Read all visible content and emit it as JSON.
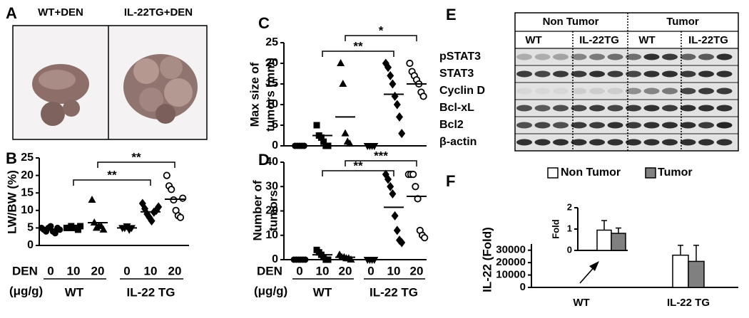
{
  "photo": {
    "panel": "A",
    "labels": [
      "WT+DEN",
      "IL-22TG+DEN"
    ]
  },
  "blot": {
    "panel": "E",
    "groups": [
      "Non Tumor",
      "Tumor"
    ],
    "genotypes": [
      "WT",
      "IL-22TG",
      "WT",
      "IL-22TG"
    ],
    "proteins": [
      "pSTAT3",
      "STAT3",
      "Cyclin D",
      "Bcl-xL",
      "Bcl2",
      "β-actin"
    ]
  },
  "chart_data": [
    {
      "type": "dotplot",
      "panel": "B",
      "ylabel": [
        "LW/BW (%)"
      ],
      "x_row_labels": [
        "DEN",
        "(μg/g)"
      ],
      "categories": [
        "0",
        "10",
        "20",
        "0",
        "10",
        "20"
      ],
      "groups": [
        "WT",
        "IL-22 TG"
      ],
      "markers": [
        "circle",
        "square",
        "triangle",
        "inverted-triangle",
        "diamond",
        "open-circle"
      ],
      "values": [
        [
          5,
          4.5,
          4,
          5,
          5.5,
          4,
          3.5,
          5,
          4.5
        ],
        [
          5,
          5,
          5.5,
          5,
          5,
          4.5,
          5.5
        ],
        [
          13,
          6.5,
          5,
          5.5,
          5.5,
          4.5
        ],
        [
          5,
          5,
          5.5,
          4.5,
          5
        ],
        [
          12,
          10.5,
          9,
          8,
          7,
          9.5,
          10,
          11
        ],
        [
          20,
          17,
          16,
          13,
          10,
          8.5,
          8,
          13.5
        ]
      ],
      "means": [
        4.7,
        5.1,
        6.5,
        5,
        9.6,
        13.2
      ],
      "ylim": [
        0,
        25
      ],
      "yticks": [
        0,
        5,
        10,
        15,
        20,
        25
      ],
      "brackets": [
        {
          "from": 1,
          "to": 4,
          "label": "**"
        },
        {
          "from": 2,
          "to": 5,
          "label": "**"
        }
      ]
    },
    {
      "type": "dotplot",
      "panel": "C",
      "ylabel": [
        "Max size of",
        "tumors (mm)"
      ],
      "categories": [
        null,
        null,
        null,
        null,
        null,
        null
      ],
      "markers": [
        "circle",
        "square",
        "triangle",
        "inverted-triangle",
        "diamond",
        "open-circle"
      ],
      "values": [
        [
          0,
          0,
          0,
          0,
          0
        ],
        [
          5,
          2.5,
          2,
          1,
          0,
          0
        ],
        [
          20,
          15,
          3,
          1,
          0.5
        ],
        [
          0,
          0,
          0,
          0
        ],
        [
          20,
          19,
          17,
          15,
          12,
          10,
          7,
          3
        ],
        [
          20,
          18,
          17,
          16,
          15,
          13,
          12
        ]
      ],
      "means": [
        0,
        2.5,
        7,
        0,
        12.5,
        15
      ],
      "ylim": [
        0,
        25
      ],
      "yticks": [
        0,
        5,
        10,
        15,
        20,
        25
      ],
      "brackets": [
        {
          "from": 1,
          "to": 4,
          "label": "**"
        },
        {
          "from": 2,
          "to": 5,
          "label": "*"
        }
      ]
    },
    {
      "type": "dotplot",
      "panel": "D",
      "ylabel": [
        "Number of",
        "tumors"
      ],
      "x_row_labels": [
        "DEN",
        "(μg/g)"
      ],
      "categories": [
        "0",
        "10",
        "20",
        "0",
        "10",
        "20"
      ],
      "groups": [
        "WT",
        "IL-22 TG"
      ],
      "markers": [
        "circle",
        "square",
        "triangle",
        "inverted-triangle",
        "diamond",
        "open-circle"
      ],
      "values": [
        [
          0,
          0,
          0,
          0,
          0,
          0
        ],
        [
          4,
          3,
          2,
          1,
          0,
          0
        ],
        [
          2,
          1,
          1,
          0.5,
          0.5,
          0
        ],
        [
          0,
          0,
          0,
          0
        ],
        [
          35,
          33,
          30,
          27,
          18,
          12,
          8,
          7
        ],
        [
          35,
          35,
          35,
          30,
          25,
          12,
          10,
          9
        ]
      ],
      "means": [
        0,
        2,
        1,
        0,
        21.5,
        26
      ],
      "ylim": [
        0,
        40
      ],
      "yticks": [
        0,
        10,
        20,
        30,
        40
      ],
      "brackets": [
        {
          "from": 1,
          "to": 4,
          "label": "**"
        },
        {
          "from": 2,
          "to": 5,
          "label": "***"
        }
      ]
    },
    {
      "type": "bar",
      "panel": "F",
      "ylabel": [
        "IL-22 (Fold)"
      ],
      "categories": [
        "WT",
        "IL-22 TG"
      ],
      "series": [
        {
          "name": "Non Tumor",
          "color": "#ffffff",
          "values": [
            1,
            26000
          ],
          "errors": [
            0.45,
            8000
          ]
        },
        {
          "name": "Tumor",
          "color": "#808080",
          "values": [
            0.8,
            21000
          ],
          "errors": [
            0.25,
            13000
          ]
        }
      ],
      "ylim": [
        0,
        35000
      ],
      "yticks": [
        0,
        10000,
        20000,
        30000
      ],
      "legend": "top"
    },
    {
      "type": "bar",
      "ylabel": [
        "Fold"
      ],
      "categories": [
        null
      ],
      "series": [
        {
          "color": "#ffffff",
          "values": [
            0.95
          ],
          "errors": [
            0.45
          ]
        },
        {
          "color": "#808080",
          "values": [
            0.8
          ],
          "errors": [
            0.25
          ]
        }
      ],
      "ylim": [
        0,
        2
      ],
      "yticks": [
        0,
        1,
        2
      ]
    }
  ]
}
